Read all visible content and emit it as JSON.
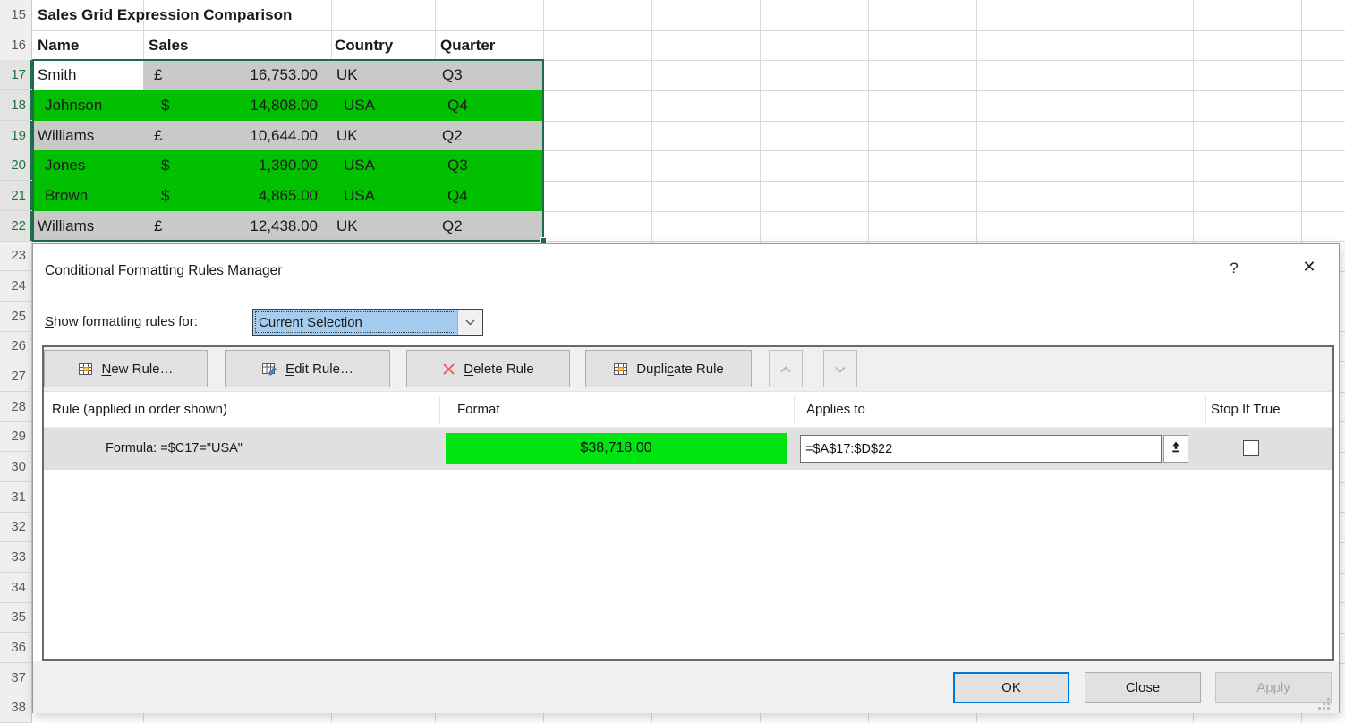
{
  "sheet": {
    "row_numbers": [
      "15",
      "16",
      "17",
      "18",
      "19",
      "20",
      "21",
      "22",
      "23",
      "24",
      "25",
      "26",
      "27",
      "28",
      "29",
      "30",
      "31",
      "32",
      "33",
      "34",
      "35",
      "36",
      "37",
      "38"
    ],
    "selected_rows": [
      17,
      18,
      19,
      20,
      21,
      22
    ],
    "title_cell": "Sales Grid Expression Comparison",
    "columns": [
      "Name",
      "Sales",
      "Country",
      "Quarter"
    ],
    "rows": [
      {
        "name": "Smith",
        "currency": "£",
        "amount": "16,753.00",
        "country": "UK",
        "quarter": "Q3",
        "highlight": false
      },
      {
        "name": "Johnson",
        "currency": "$",
        "amount": "14,808.00",
        "country": "USA",
        "quarter": "Q4",
        "highlight": true
      },
      {
        "name": "Williams",
        "currency": "£",
        "amount": "10,644.00",
        "country": "UK",
        "quarter": "Q2",
        "highlight": false
      },
      {
        "name": "Jones",
        "currency": "$",
        "amount": "1,390.00",
        "country": "USA",
        "quarter": "Q3",
        "highlight": true
      },
      {
        "name": "Brown",
        "currency": "$",
        "amount": "4,865.00",
        "country": "USA",
        "quarter": "Q4",
        "highlight": true
      },
      {
        "name": "Williams",
        "currency": "£",
        "amount": "12,438.00",
        "country": "UK",
        "quarter": "Q2",
        "highlight": false
      }
    ],
    "colors": {
      "highlight_green": "#00C000",
      "selection_gray": "#C9C9C9",
      "selection_border": "#1F6B47"
    }
  },
  "dialog": {
    "title": "Conditional Formatting Rules Manager",
    "help_glyph": "?",
    "close_glyph": "✕",
    "show_rules_label": {
      "pre": "",
      "key": "S",
      "post": "how formatting rules for:"
    },
    "dropdown": {
      "value": "Current Selection",
      "icon": "chevron-down-icon"
    },
    "toolbar": {
      "new_rule": {
        "pre": "",
        "key": "N",
        "post": "ew Rule…",
        "icon": "table-grid-icon"
      },
      "edit_rule": {
        "pre": "",
        "key": "E",
        "post": "dit Rule…",
        "icon": "table-grid-pencil-icon"
      },
      "delete_rule": {
        "pre": "",
        "key": "D",
        "post": "elete Rule",
        "icon": "red-x-icon"
      },
      "duplicate_rule": {
        "pre": "Dupli",
        "key": "c",
        "post": "ate Rule",
        "icon": "table-grid-icon"
      },
      "move_up_icon": "chevron-up-icon",
      "move_down_icon": "chevron-down-icon"
    },
    "list": {
      "headers": [
        "Rule (applied in order shown)",
        "Format",
        "Applies to",
        "Stop If True"
      ],
      "rule": {
        "description": "Formula: =$C17=\"USA\"",
        "format_preview": "$38,718.00",
        "applies_to": "=$A$17:$D$22",
        "stop_if_true_checked": false,
        "preview_color": "#00E412"
      }
    },
    "footer": {
      "ok": "OK",
      "close": "Close",
      "apply": "Apply"
    },
    "accent_blue": "#0078D7"
  }
}
